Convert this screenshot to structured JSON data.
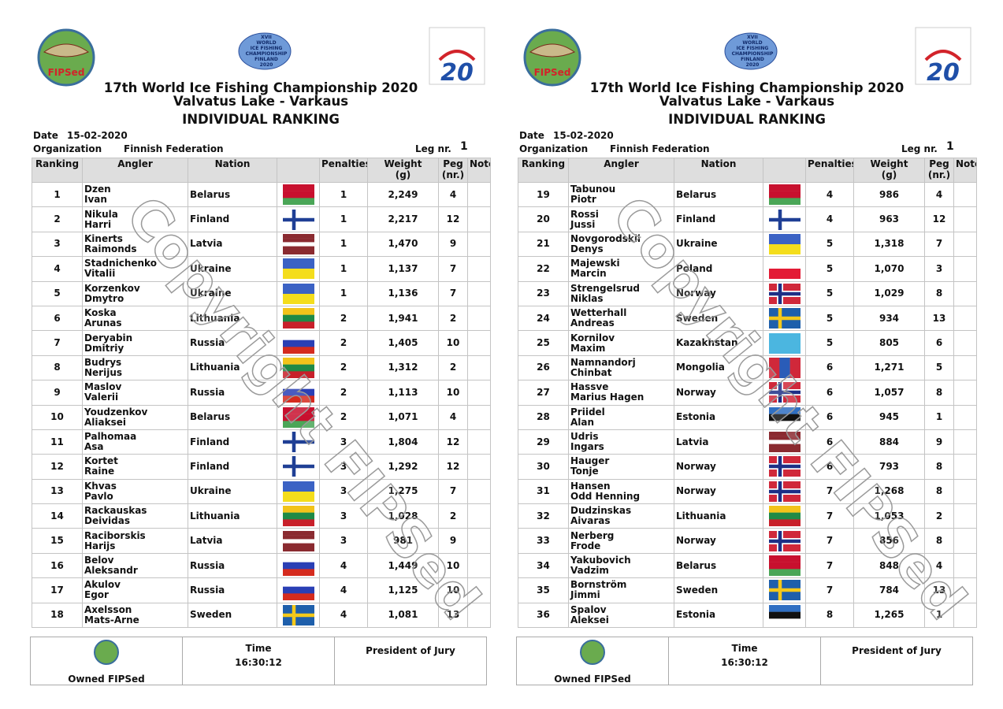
{
  "sheet": {
    "logo_left": "FIPSed",
    "logo_center": [
      "XVII",
      "WORLD",
      "ICE FISHING",
      "CHAMPIONSHIP",
      "FINLAND",
      "2020"
    ],
    "logo_right": "20",
    "title": "17th World Ice Fishing Championship 2020",
    "subtitle": "Valvatus Lake - Varkaus",
    "heading": "INDIVIDUAL RANKING",
    "date_label": "Date",
    "date": "15-02-2020",
    "org_label": "Organization",
    "organization": "Finnish Federation",
    "leg_label": "Leg nr.",
    "leg": 1,
    "headers": [
      [
        "Ranking"
      ],
      [
        "Angler"
      ],
      [
        "Nation"
      ],
      [
        "Penalties"
      ],
      [
        "Weight",
        "(g)"
      ],
      [
        "Peg",
        "(nr.)"
      ],
      [
        "Note"
      ]
    ],
    "watermark": "Copyright FIPSed",
    "owned": "Owned FIPSed",
    "time_label": "Time",
    "time": "16:30:12",
    "president": "President of Jury"
  },
  "flags": {
    "Belarus": {
      "stripes": [
        "#c8102e",
        "#c8102e",
        "#4aa657"
      ]
    },
    "Finland": {
      "stripes": [
        "#ffffff"
      ],
      "cross": [
        "#1f3f95"
      ]
    },
    "Latvia": {
      "stripes": [
        "#8a2a30",
        "#8a2a30",
        "#ffffff",
        "#8a2a30",
        "#8a2a30"
      ]
    },
    "Ukraine": {
      "stripes": [
        "#3b62c4",
        "#f4dd1c"
      ]
    },
    "Lithuania": {
      "stripes": [
        "#f2c31a",
        "#1f8a46",
        "#c8202a"
      ]
    },
    "Russia": {
      "stripes": [
        "#ffffff",
        "#2a3fb5",
        "#d52b1e"
      ]
    },
    "Sweden": {
      "stripes": [
        "#1e5fab"
      ],
      "cross": [
        "#f4c81a"
      ]
    },
    "Poland": {
      "stripes": [
        "#ffffff",
        "#e31b35"
      ]
    },
    "Norway": {
      "stripes": [
        "#d0283a"
      ],
      "cross": [
        "#ffffff",
        "#1d2f86"
      ]
    },
    "Kazakhstan": {
      "stripes": [
        "#4bb6e0"
      ]
    },
    "Estonia": {
      "stripes": [
        "#2f6fc2",
        "#111111",
        "#ffffff"
      ]
    },
    "Mongolia": {
      "stripes": [
        "#d0283a",
        "#2a5cb8",
        "#d0283a"
      ],
      "vertical": true
    }
  },
  "pages": [
    {
      "rows": [
        [
          1,
          "Dzen",
          "Ivan",
          "Belarus",
          1,
          "2,249",
          4
        ],
        [
          2,
          "Nikula",
          "Harri",
          "Finland",
          1,
          "2,217",
          12
        ],
        [
          3,
          "Kinerts",
          "Raimonds",
          "Latvia",
          1,
          "1,470",
          9
        ],
        [
          4,
          "Stadnichenko",
          "Vitalii",
          "Ukraine",
          1,
          "1,137",
          7
        ],
        [
          5,
          "Korzenkov",
          "Dmytro",
          "Ukraine",
          1,
          "1,136",
          7
        ],
        [
          6,
          "Koska",
          "Arunas",
          "Lithuania",
          2,
          "1,941",
          2
        ],
        [
          7,
          "Deryabin",
          "Dmitriy",
          "Russia",
          2,
          "1,405",
          10
        ],
        [
          8,
          "Budrys",
          "Nerijus",
          "Lithuania",
          2,
          "1,312",
          2
        ],
        [
          9,
          "Maslov",
          "Valerii",
          "Russia",
          2,
          "1,113",
          10
        ],
        [
          10,
          "Youdzenkov",
          "Aliaksei",
          "Belarus",
          2,
          "1,071",
          4
        ],
        [
          11,
          "Palhomaa",
          "Asa",
          "Finland",
          3,
          "1,804",
          12
        ],
        [
          12,
          "Kortet",
          "Raine",
          "Finland",
          3,
          "1,292",
          12
        ],
        [
          13,
          "Khvas",
          "Pavlo",
          "Ukraine",
          3,
          "1,275",
          7
        ],
        [
          14,
          "Rackauskas",
          "Deividas",
          "Lithuania",
          3,
          "1,028",
          2
        ],
        [
          15,
          "Raciborskis",
          "Harijs",
          "Latvia",
          3,
          "981",
          9
        ],
        [
          16,
          "Belov",
          "Aleksandr",
          "Russia",
          4,
          "1,449",
          10
        ],
        [
          17,
          "Akulov",
          "Egor",
          "Russia",
          4,
          "1,125",
          10
        ],
        [
          18,
          "Axelsson",
          "Mats-Arne",
          "Sweden",
          4,
          "1,081",
          13
        ]
      ]
    },
    {
      "rows": [
        [
          19,
          "Tabunou",
          "Piotr",
          "Belarus",
          4,
          "986",
          4
        ],
        [
          20,
          "Rossi",
          "Jussi",
          "Finland",
          4,
          "963",
          12
        ],
        [
          21,
          "Novgorodskii",
          "Denys",
          "Ukraine",
          5,
          "1,318",
          7
        ],
        [
          22,
          "Majewski",
          "Marcin",
          "Poland",
          5,
          "1,070",
          3
        ],
        [
          23,
          "Strengelsrud",
          "Niklas",
          "Norway",
          5,
          "1,029",
          8
        ],
        [
          24,
          "Wetterhall",
          "Andreas",
          "Sweden",
          5,
          "934",
          13
        ],
        [
          25,
          "Kornilov",
          "Maxim",
          "Kazakhstan",
          5,
          "805",
          6
        ],
        [
          26,
          "Namnandorj",
          "Chinbat",
          "Mongolia",
          6,
          "1,271",
          5
        ],
        [
          27,
          "Hassve",
          "Marius Hagen",
          "Norway",
          6,
          "1,057",
          8
        ],
        [
          28,
          "Priidel",
          "Alan",
          "Estonia",
          6,
          "945",
          1
        ],
        [
          29,
          "Udris",
          "Ingars",
          "Latvia",
          6,
          "884",
          9
        ],
        [
          30,
          "Hauger",
          "Tonje",
          "Norway",
          6,
          "793",
          8
        ],
        [
          31,
          "Hansen",
          "Odd Henning",
          "Norway",
          7,
          "1,268",
          8
        ],
        [
          32,
          "Dudzinskas",
          "Aivaras",
          "Lithuania",
          7,
          "1,053",
          2
        ],
        [
          33,
          "Nerberg",
          "Frode",
          "Norway",
          7,
          "856",
          8
        ],
        [
          34,
          "Yakubovich",
          "Vadzim",
          "Belarus",
          7,
          "848",
          4
        ],
        [
          35,
          "Bornström",
          "Jimmi",
          "Sweden",
          7,
          "784",
          13
        ],
        [
          36,
          "Spalov",
          "Aleksei",
          "Estonia",
          8,
          "1,265",
          1
        ]
      ]
    }
  ]
}
